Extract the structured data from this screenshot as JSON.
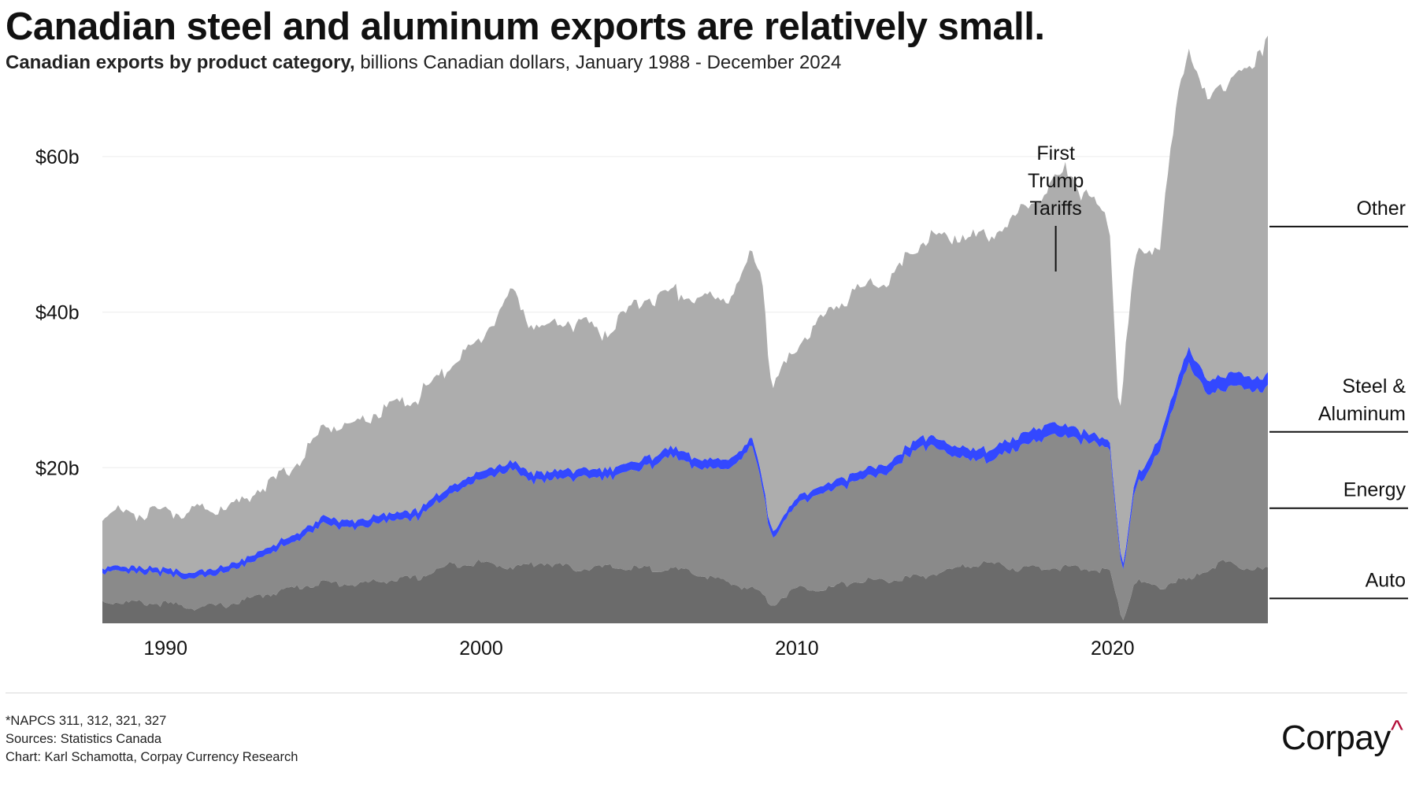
{
  "header": {
    "title": "Canadian steel and aluminum exports are relatively small.",
    "subtitle_bold": "Canadian exports by product category,",
    "subtitle_rest": " billions Canadian dollars, January 1988 - December 2024"
  },
  "chart_data": {
    "type": "area",
    "stacked": true,
    "title": "Canadian exports by product category",
    "ylabel": "billions Canadian dollars",
    "xlabel": "",
    "xlim": [
      1988.0,
      2024.92
    ],
    "ylim": [
      0,
      70
    ],
    "y_ticks": [
      {
        "value": 20,
        "label": "$20b"
      },
      {
        "value": 40,
        "label": "$40b"
      },
      {
        "value": 60,
        "label": "$60b"
      }
    ],
    "x_ticks": [
      {
        "value": 1990,
        "label": "1990"
      },
      {
        "value": 2000,
        "label": "2000"
      },
      {
        "value": 2010,
        "label": "2010"
      },
      {
        "value": 2020,
        "label": "2020"
      }
    ],
    "series": [
      {
        "name": "Auto",
        "color": "#6b6b6b",
        "label": "Auto",
        "points": [
          [
            1988,
            2.8
          ],
          [
            1990,
            2.5
          ],
          [
            1991,
            2.0
          ],
          [
            1992,
            2.4
          ],
          [
            1993,
            3.5
          ],
          [
            1994,
            4.5
          ],
          [
            1995,
            5.2
          ],
          [
            1996,
            5.0
          ],
          [
            1997,
            5.5
          ],
          [
            1998,
            5.8
          ],
          [
            1999,
            7.5
          ],
          [
            2000,
            7.8
          ],
          [
            2001,
            7.2
          ],
          [
            2002,
            7.8
          ],
          [
            2003,
            7.0
          ],
          [
            2004,
            7.2
          ],
          [
            2005,
            7.0
          ],
          [
            2006,
            7.0
          ],
          [
            2007,
            6.2
          ],
          [
            2008,
            5.0
          ],
          [
            2008.8,
            4.2
          ],
          [
            2009.2,
            2.4
          ],
          [
            2009.6,
            3.5
          ],
          [
            2010,
            4.5
          ],
          [
            2011,
            4.5
          ],
          [
            2012,
            5.5
          ],
          [
            2013,
            5.5
          ],
          [
            2014,
            6.0
          ],
          [
            2015,
            7.0
          ],
          [
            2016,
            7.8
          ],
          [
            2017,
            7.0
          ],
          [
            2018,
            7.2
          ],
          [
            2019,
            7.0
          ],
          [
            2019.9,
            6.8
          ],
          [
            2020.2,
            2.0
          ],
          [
            2020.35,
            0.6
          ],
          [
            2020.7,
            5.5
          ],
          [
            2021,
            5.0
          ],
          [
            2021.5,
            4.5
          ],
          [
            2022,
            5.5
          ],
          [
            2022.5,
            5.5
          ],
          [
            2023,
            7.0
          ],
          [
            2023.5,
            7.8
          ],
          [
            2024,
            7.2
          ],
          [
            2024.92,
            6.8
          ]
        ]
      },
      {
        "name": "Energy",
        "color": "#8a8a8a",
        "label": "Energy",
        "points": [
          [
            1988,
            4.0
          ],
          [
            1990,
            3.8
          ],
          [
            1991,
            3.8
          ],
          [
            1992,
            4.2
          ],
          [
            1993,
            4.8
          ],
          [
            1994,
            5.8
          ],
          [
            1995,
            7.5
          ],
          [
            1996,
            7.2
          ],
          [
            1997,
            7.6
          ],
          [
            1998,
            7.8
          ],
          [
            1999,
            9.2
          ],
          [
            2000,
            10.8
          ],
          [
            2001,
            12.5
          ],
          [
            2001.5,
            11.0
          ],
          [
            2002,
            10.5
          ],
          [
            2003,
            11.8
          ],
          [
            2004,
            11.5
          ],
          [
            2005,
            12.8
          ],
          [
            2006,
            14.5
          ],
          [
            2007,
            13.5
          ],
          [
            2008,
            15.0
          ],
          [
            2008.6,
            18.5
          ],
          [
            2008.9,
            14.0
          ],
          [
            2009.2,
            8.5
          ],
          [
            2009.6,
            9.5
          ],
          [
            2010,
            11.0
          ],
          [
            2011,
            12.5
          ],
          [
            2012,
            13.0
          ],
          [
            2013,
            14.0
          ],
          [
            2014,
            17.0
          ],
          [
            2015,
            14.5
          ],
          [
            2016,
            13.0
          ],
          [
            2017,
            15.5
          ],
          [
            2018,
            17.0
          ],
          [
            2019,
            16.5
          ],
          [
            2019.9,
            16.0
          ],
          [
            2020.2,
            8.0
          ],
          [
            2020.35,
            6.0
          ],
          [
            2020.7,
            12.0
          ],
          [
            2021,
            13.5
          ],
          [
            2021.5,
            18.0
          ],
          [
            2022,
            23.0
          ],
          [
            2022.4,
            28.0
          ],
          [
            2022.8,
            24.5
          ],
          [
            2023,
            22.5
          ],
          [
            2023.5,
            22.0
          ],
          [
            2024,
            23.5
          ],
          [
            2024.5,
            22.5
          ],
          [
            2024.92,
            23.5
          ]
        ]
      },
      {
        "name": "Steel & Aluminum",
        "color": "#3348ff",
        "label": "Steel &\nAluminum",
        "points": [
          [
            1988,
            0.6
          ],
          [
            1995,
            0.9
          ],
          [
            2000,
            1.0
          ],
          [
            2005,
            1.1
          ],
          [
            2008,
            1.2
          ],
          [
            2009.5,
            0.8
          ],
          [
            2012,
            1.1
          ],
          [
            2015,
            1.3
          ],
          [
            2018,
            1.6
          ],
          [
            2020.3,
            0.8
          ],
          [
            2021,
            1.4
          ],
          [
            2022.4,
            2.0
          ],
          [
            2023,
            1.8
          ],
          [
            2024.92,
            1.6
          ]
        ]
      },
      {
        "name": "Other",
        "color": "#adadad",
        "label": "Other",
        "points": [
          [
            1988,
            6.8
          ],
          [
            1990,
            7.2
          ],
          [
            1991,
            8.0
          ],
          [
            1992,
            7.5
          ],
          [
            1993,
            8.0
          ],
          [
            1994,
            8.7
          ],
          [
            1995,
            11.5
          ],
          [
            1996,
            12.5
          ],
          [
            1997,
            13.5
          ],
          [
            1998,
            14.5
          ],
          [
            1999,
            15.5
          ],
          [
            2000,
            17.0
          ],
          [
            2001,
            22.0
          ],
          [
            2001.6,
            19.0
          ],
          [
            2002,
            18.5
          ],
          [
            2003,
            19.0
          ],
          [
            2004,
            17.5
          ],
          [
            2005,
            20.5
          ],
          [
            2006,
            20.0
          ],
          [
            2007,
            20.5
          ],
          [
            2008,
            21.0
          ],
          [
            2008.6,
            24.0
          ],
          [
            2008.9,
            26.0
          ],
          [
            2009.2,
            18.5
          ],
          [
            2009.6,
            19.0
          ],
          [
            2010,
            19.5
          ],
          [
            2011,
            22.0
          ],
          [
            2012,
            23.5
          ],
          [
            2013,
            23.5
          ],
          [
            2014,
            25.0
          ],
          [
            2015,
            27.0
          ],
          [
            2016,
            27.5
          ],
          [
            2017,
            28.5
          ],
          [
            2018,
            30.5
          ],
          [
            2018.5,
            33.0
          ],
          [
            2019,
            31.0
          ],
          [
            2019.9,
            28.0
          ],
          [
            2020.2,
            16.0
          ],
          [
            2020.35,
            25.0
          ],
          [
            2020.7,
            28.0
          ],
          [
            2021,
            27.5
          ],
          [
            2021.5,
            25.0
          ],
          [
            2022,
            35.0
          ],
          [
            2022.4,
            38.5
          ],
          [
            2022.8,
            37.0
          ],
          [
            2023,
            36.0
          ],
          [
            2023.5,
            37.0
          ],
          [
            2024,
            39.0
          ],
          [
            2024.5,
            40.0
          ],
          [
            2024.92,
            44.0
          ]
        ]
      }
    ],
    "annotations": [
      {
        "text_lines": [
          "First",
          "Trump",
          "Tariffs"
        ],
        "x": 2018.2
      }
    ]
  },
  "footer": {
    "note": "*NAPCS 311, 312, 321, 327",
    "sources": "Sources: Statistics Canada",
    "credit": "Chart: Karl Schamotta, Corpay Currency Research"
  },
  "brand": {
    "name": "Corpay",
    "mark": "^"
  }
}
